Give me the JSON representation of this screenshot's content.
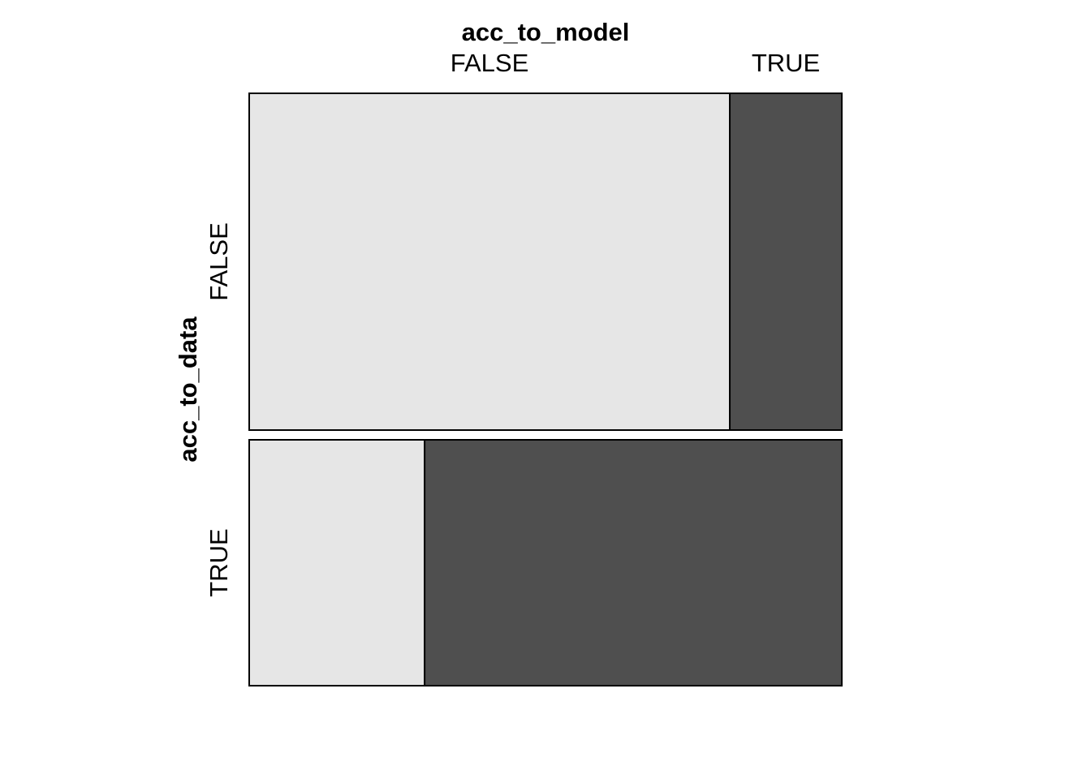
{
  "chart_data": {
    "type": "mosaic",
    "x_variable": "acc_to_model",
    "y_variable": "acc_to_data",
    "x_levels": [
      "FALSE",
      "TRUE"
    ],
    "y_levels": [
      "FALSE",
      "TRUE"
    ],
    "rows": [
      {
        "level": "FALSE",
        "share": 0.578,
        "x_shares": [
          0.811,
          0.189
        ]
      },
      {
        "level": "TRUE",
        "share": 0.422,
        "x_shares": [
          0.296,
          0.704
        ]
      }
    ],
    "colors": {
      "FALSE": "#e6e6e6",
      "TRUE": "#4f4f4f"
    }
  }
}
